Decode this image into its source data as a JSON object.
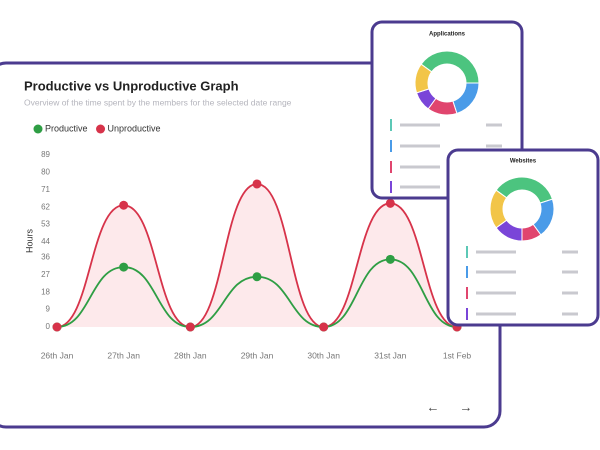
{
  "chart_data": [
    {
      "type": "line",
      "title": "Productive vs Unproductive Graph",
      "subtitle": "Overview of the time spent by the members for the selected date range",
      "y_label": "Hours",
      "categories": [
        "26th Jan",
        "27th Jan",
        "28th Jan",
        "29th Jan",
        "30th Jan",
        "31st Jan",
        "1st Feb"
      ],
      "series": [
        {
          "name": "Productive",
          "color": "#2e9e44",
          "values": [
            0,
            31,
            0,
            26,
            0,
            35,
            0
          ]
        },
        {
          "name": "Unproductive",
          "color": "#d7334a",
          "area_color": "#fde9eb",
          "values": [
            0,
            63,
            0,
            74,
            0,
            64,
            0
          ]
        }
      ],
      "ylim": [
        0,
        89
      ],
      "yticks": [
        0,
        9,
        18,
        27,
        36,
        44,
        53,
        62,
        71,
        80,
        89
      ],
      "grid": false,
      "legend": "top-left"
    },
    {
      "type": "donut",
      "title": "Applications",
      "values": [
        40,
        20,
        15,
        10,
        15
      ],
      "colors": [
        "#4cc47f",
        "#4a9be8",
        "#e0456e",
        "#7a45d8",
        "#f2c548"
      ]
    },
    {
      "type": "donut",
      "title": "Websites",
      "values": [
        35,
        20,
        10,
        15,
        20
      ],
      "colors": [
        "#4cc47f",
        "#4a9be8",
        "#e0456e",
        "#7a45d8",
        "#f2c548"
      ]
    }
  ]
}
